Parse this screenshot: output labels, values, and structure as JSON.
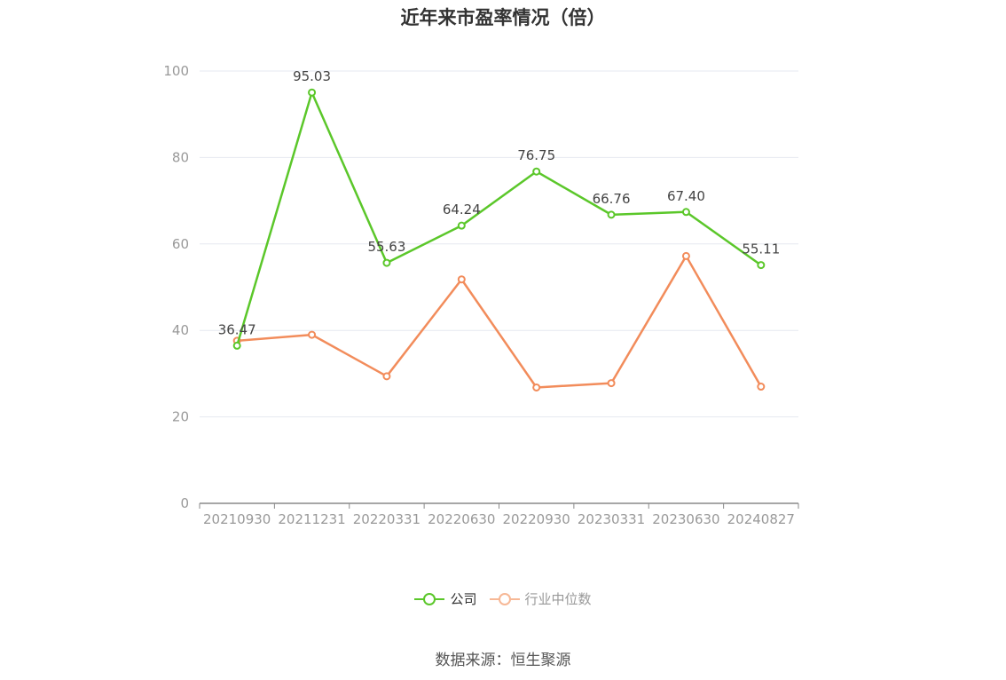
{
  "title": "近年来市盈率情况（倍）",
  "source": "数据来源：恒生聚源",
  "chart_data": {
    "type": "line",
    "categories": [
      "20210930",
      "20211231",
      "20220331",
      "20220630",
      "20220930",
      "20230331",
      "20230630",
      "20240827"
    ],
    "ylim": [
      0,
      100
    ],
    "yticks": [
      0,
      20,
      40,
      60,
      80,
      100
    ],
    "grid": true,
    "legend_position": "bottom",
    "series": [
      {
        "name": "公司",
        "color": "#5bc72a",
        "values": [
          36.47,
          95.03,
          55.63,
          64.24,
          76.75,
          66.76,
          67.4,
          55.11
        ],
        "labels": [
          "36.47",
          "95.03",
          "55.63",
          "64.24",
          "76.75",
          "66.76",
          "67.40",
          "55.11"
        ]
      },
      {
        "name": "行业中位数",
        "color": "#f28c5b",
        "legend_color": "#f7b896",
        "values": [
          37.6,
          39.0,
          29.4,
          51.8,
          26.8,
          27.8,
          57.2,
          27.0
        ]
      }
    ]
  }
}
